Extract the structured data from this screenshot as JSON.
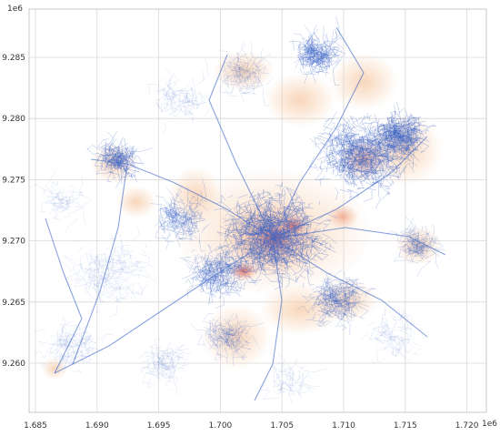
{
  "figure": {
    "y_offset_text": "1e6",
    "x_offset_text": "1e6",
    "x_ticks": [
      "1.685",
      "1.690",
      "1.695",
      "1.700",
      "1.705",
      "1.710",
      "1.715",
      "1.720"
    ],
    "y_ticks": [
      "9.285",
      "9.280",
      "9.275",
      "9.270",
      "9.265",
      "9.260"
    ],
    "colors": {
      "background": "#ffffff",
      "grid": "#d8d8d8",
      "frame": "#bbbbbb",
      "network": "#3b64c6",
      "density_low": "#f9d9c0",
      "density_high": "#e87a6a"
    },
    "grid": true
  },
  "chart_data": {
    "type": "map",
    "x_ticks": [
      1.685,
      1.69,
      1.695,
      1.7,
      1.705,
      1.71,
      1.715,
      1.72
    ],
    "y_ticks": [
      9.285,
      9.28,
      9.275,
      9.27,
      9.265,
      9.26
    ],
    "x_scale": "1e6",
    "y_scale": "1e6",
    "xlim": [
      1.6845,
      1.7225
    ],
    "ylim": [
      9.2565,
      9.2885
    ],
    "grid": true,
    "layers": [
      "street network (blue lines)",
      "density heat overlay (peach to red)"
    ]
  }
}
